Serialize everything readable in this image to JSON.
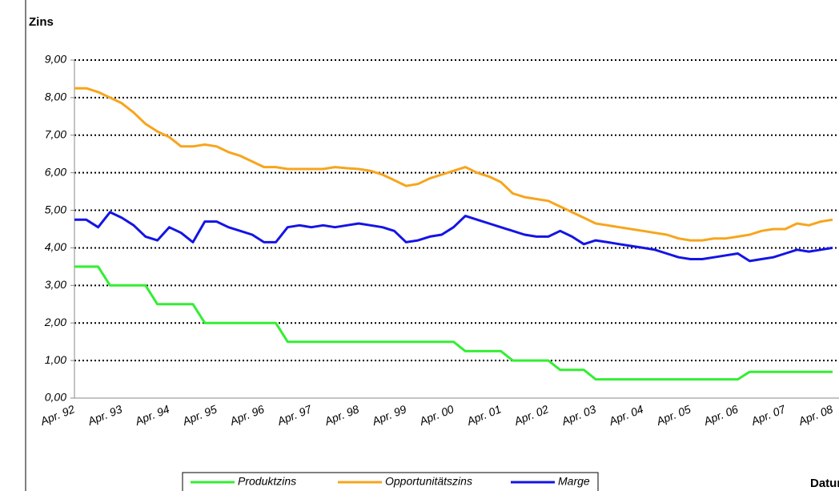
{
  "chart_data": {
    "type": "line",
    "y_label": "Zins",
    "x_label": "Datum",
    "categories": [
      "Apr. 92",
      null,
      null,
      null,
      "Apr. 93",
      null,
      null,
      null,
      "Apr. 94",
      null,
      null,
      null,
      "Apr. 95",
      null,
      null,
      null,
      "Apr. 96",
      null,
      null,
      null,
      "Apr. 97",
      null,
      null,
      null,
      "Apr. 98",
      null,
      null,
      null,
      "Apr. 99",
      null,
      null,
      null,
      "Apr. 00",
      null,
      null,
      null,
      "Apr. 01",
      null,
      null,
      null,
      "Apr. 02",
      null,
      null,
      null,
      "Apr. 03",
      null,
      null,
      null,
      "Apr. 04",
      null,
      null,
      null,
      "Apr. 05",
      null,
      null,
      null,
      "Apr. 06",
      null,
      null,
      null,
      "Apr. 07",
      null,
      null,
      null,
      "Apr. 08"
    ],
    "series": [
      {
        "name": "Produktzins",
        "color": "#33ee33",
        "values": [
          3.5,
          3.5,
          3.5,
          3.0,
          3.0,
          3.0,
          3.0,
          2.5,
          2.5,
          2.5,
          2.5,
          2.0,
          2.0,
          2.0,
          2.0,
          2.0,
          2.0,
          2.0,
          1.5,
          1.5,
          1.5,
          1.5,
          1.5,
          1.5,
          1.5,
          1.5,
          1.5,
          1.5,
          1.5,
          1.5,
          1.5,
          1.5,
          1.5,
          1.25,
          1.25,
          1.25,
          1.25,
          1.0,
          1.0,
          1.0,
          1.0,
          0.75,
          0.75,
          0.75,
          0.5,
          0.5,
          0.5,
          0.5,
          0.5,
          0.5,
          0.5,
          0.5,
          0.5,
          0.5,
          0.5,
          0.5,
          0.5,
          0.7,
          0.7,
          0.7,
          0.7,
          0.7,
          0.7,
          0.7,
          0.7
        ]
      },
      {
        "name": "Opportunitätszins",
        "color": "#f7a51c",
        "values": [
          8.25,
          8.25,
          8.15,
          8.0,
          7.85,
          7.6,
          7.3,
          7.1,
          6.95,
          6.7,
          6.7,
          6.75,
          6.7,
          6.55,
          6.45,
          6.3,
          6.15,
          6.15,
          6.1,
          6.1,
          6.1,
          6.1,
          6.15,
          6.12,
          6.1,
          6.05,
          5.95,
          5.8,
          5.65,
          5.7,
          5.85,
          5.95,
          6.05,
          6.15,
          6.0,
          5.9,
          5.75,
          5.45,
          5.35,
          5.3,
          5.25,
          5.1,
          4.95,
          4.8,
          4.65,
          4.6,
          4.55,
          4.5,
          4.45,
          4.4,
          4.35,
          4.25,
          4.2,
          4.2,
          4.25,
          4.25,
          4.3,
          4.35,
          4.45,
          4.5,
          4.5,
          4.65,
          4.6,
          4.7,
          4.75
        ]
      },
      {
        "name": "Marge",
        "color": "#1414e6",
        "values": [
          4.75,
          4.75,
          4.55,
          4.95,
          4.8,
          4.6,
          4.3,
          4.2,
          4.55,
          4.4,
          4.15,
          4.7,
          4.7,
          4.55,
          4.45,
          4.35,
          4.15,
          4.15,
          4.55,
          4.6,
          4.55,
          4.6,
          4.55,
          4.6,
          4.65,
          4.6,
          4.55,
          4.45,
          4.15,
          4.2,
          4.3,
          4.35,
          4.55,
          4.85,
          4.75,
          4.65,
          4.55,
          4.45,
          4.35,
          4.3,
          4.3,
          4.45,
          4.3,
          4.1,
          4.2,
          4.15,
          4.1,
          4.05,
          4.0,
          3.95,
          3.85,
          3.75,
          3.7,
          3.7,
          3.75,
          3.8,
          3.85,
          3.65,
          3.7,
          3.75,
          3.85,
          3.95,
          3.9,
          3.95,
          4.0
        ]
      }
    ],
    "ylim": [
      0,
      9
    ],
    "yticks": [
      {
        "value": 0,
        "label": "0,00"
      },
      {
        "value": 1,
        "label": "1,00"
      },
      {
        "value": 2,
        "label": "2,00"
      },
      {
        "value": 3,
        "label": "3,00"
      },
      {
        "value": 4,
        "label": "4,00"
      },
      {
        "value": 5,
        "label": "5,00"
      },
      {
        "value": 6,
        "label": "6,00"
      },
      {
        "value": 7,
        "label": "7,00"
      },
      {
        "value": 8,
        "label": "8,00"
      },
      {
        "value": 9,
        "label": "9,00"
      }
    ],
    "grid": true,
    "legend": "bottom"
  }
}
